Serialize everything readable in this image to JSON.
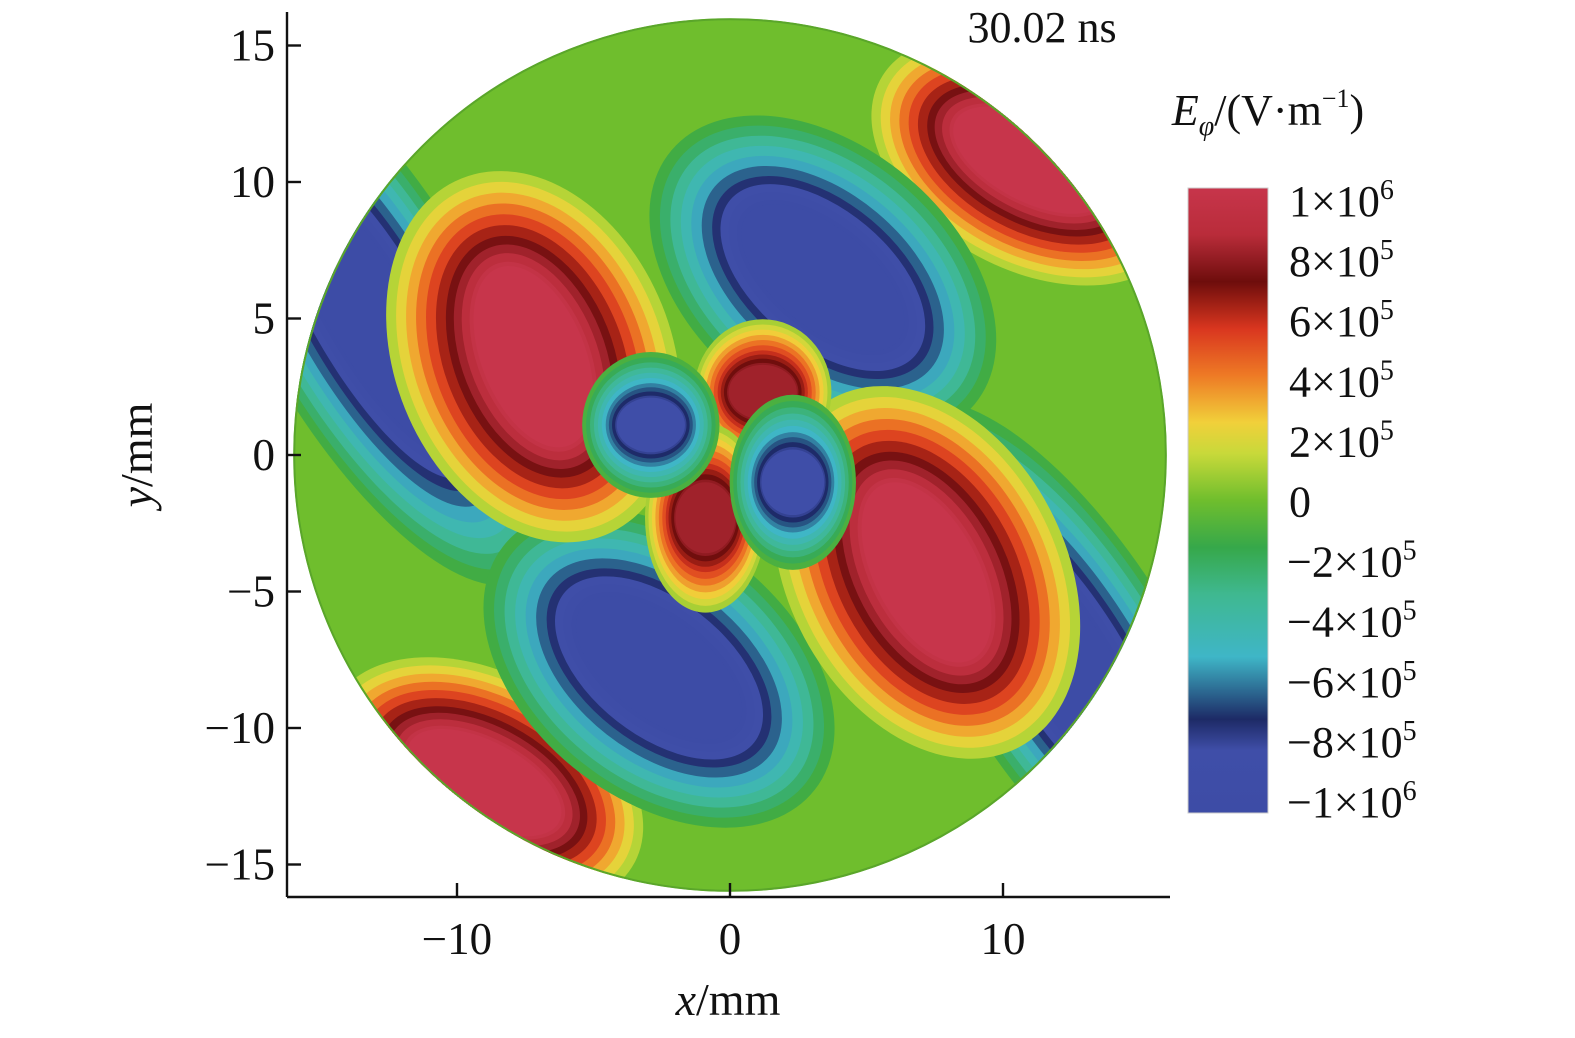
{
  "chart_data": {
    "type": "heatmap",
    "time_label": "30.02 ns",
    "xlabel": {
      "var": "x",
      "unit": "/mm"
    },
    "ylabel": {
      "var": "y",
      "unit": "/mm"
    },
    "xlim": [
      -16.5,
      16
    ],
    "ylim": [
      -16,
      16
    ],
    "x_ticks": [
      {
        "value": -10,
        "label": "−10"
      },
      {
        "value": 0,
        "label": "0"
      },
      {
        "value": 10,
        "label": "10"
      }
    ],
    "y_ticks": [
      {
        "value": 15,
        "label": "15"
      },
      {
        "value": 10,
        "label": "10"
      },
      {
        "value": 5,
        "label": "5"
      },
      {
        "value": 0,
        "label": "0"
      },
      {
        "value": -5,
        "label": "−5"
      },
      {
        "value": -10,
        "label": "−10"
      },
      {
        "value": -15,
        "label": "−15"
      }
    ],
    "domain_radius_mm": 16,
    "field_lobes": [
      {
        "x": 11,
        "y": 10.8,
        "rx": 3.1,
        "ry": 1.5,
        "angle_deg": -28,
        "value": 1000000
      },
      {
        "x": -9,
        "y": -12,
        "rx": 3.1,
        "ry": 1.5,
        "angle_deg": -28,
        "value": 1000000
      },
      {
        "x": -13.2,
        "y": 5.2,
        "rx": 5.6,
        "ry": 1.55,
        "angle_deg": -60,
        "value": -1000000
      },
      {
        "x": 12.3,
        "y": -7.5,
        "rx": 5.4,
        "ry": 1.55,
        "angle_deg": -58,
        "value": -1000000
      },
      {
        "x": 3.4,
        "y": 6.5,
        "rx": 3.6,
        "ry": 1.8,
        "angle_deg": -40,
        "value": -1000000
      },
      {
        "x": -2.6,
        "y": -7.8,
        "rx": 3.6,
        "ry": 1.8,
        "angle_deg": -38,
        "value": -1000000
      },
      {
        "x": -7.2,
        "y": 3.6,
        "rx": 3.5,
        "ry": 1.9,
        "angle_deg": -68,
        "value": 1000000
      },
      {
        "x": 7.2,
        "y": -4.3,
        "rx": 3.6,
        "ry": 1.9,
        "angle_deg": -62,
        "value": 1000000
      },
      {
        "x": 1.2,
        "y": 2.3,
        "rx": 1.25,
        "ry": 1.0,
        "angle_deg": 0,
        "value": 800000
      },
      {
        "x": -0.9,
        "y": -2.3,
        "rx": 1.1,
        "ry": 1.3,
        "angle_deg": 0,
        "value": 800000
      },
      {
        "x": -2.9,
        "y": 1.1,
        "rx": 1.25,
        "ry": 1.0,
        "angle_deg": 0,
        "value": -800000
      },
      {
        "x": 2.3,
        "y": -1.0,
        "rx": 1.15,
        "ry": 1.2,
        "angle_deg": 0,
        "value": -800000
      }
    ],
    "colorbar": {
      "title": {
        "var": "E",
        "sub": "φ",
        "unit_pre": "/(V·m",
        "unit_sup": "−1",
        "unit_post": ")"
      },
      "min": -1000000,
      "max": 1000000,
      "stops": [
        {
          "value": -1000000,
          "color": "#3d4ca6"
        },
        {
          "value": -800000,
          "color": "#3f4ea8"
        },
        {
          "value": -700000,
          "color": "#1d2a66"
        },
        {
          "value": -500000,
          "color": "#3fb6c7"
        },
        {
          "value": -300000,
          "color": "#3fb890"
        },
        {
          "value": -150000,
          "color": "#36a84a"
        },
        {
          "value": 0,
          "color": "#6fbe2d"
        },
        {
          "value": 150000,
          "color": "#c8d93a"
        },
        {
          "value": 250000,
          "color": "#f1d03a"
        },
        {
          "value": 400000,
          "color": "#ee7a25"
        },
        {
          "value": 550000,
          "color": "#d9361f"
        },
        {
          "value": 700000,
          "color": "#6e0d0c"
        },
        {
          "value": 850000,
          "color": "#b92c3a"
        },
        {
          "value": 1000000,
          "color": "#c7354b"
        }
      ],
      "labels": [
        {
          "value": 1000000,
          "base": "1×10",
          "exp": "6"
        },
        {
          "value": 800000,
          "base": "8×10",
          "exp": "5"
        },
        {
          "value": 600000,
          "base": "6×10",
          "exp": "5"
        },
        {
          "value": 400000,
          "base": "4×10",
          "exp": "5"
        },
        {
          "value": 200000,
          "base": "2×10",
          "exp": "5"
        },
        {
          "value": 0,
          "base": "0",
          "exp": ""
        },
        {
          "value": -200000,
          "base": "−2×10",
          "exp": "5"
        },
        {
          "value": -400000,
          "base": "−4×10",
          "exp": "5"
        },
        {
          "value": -600000,
          "base": "−6×10",
          "exp": "5"
        },
        {
          "value": -800000,
          "base": "−8×10",
          "exp": "5"
        },
        {
          "value": -1000000,
          "base": "−1×10",
          "exp": "6"
        }
      ]
    }
  }
}
